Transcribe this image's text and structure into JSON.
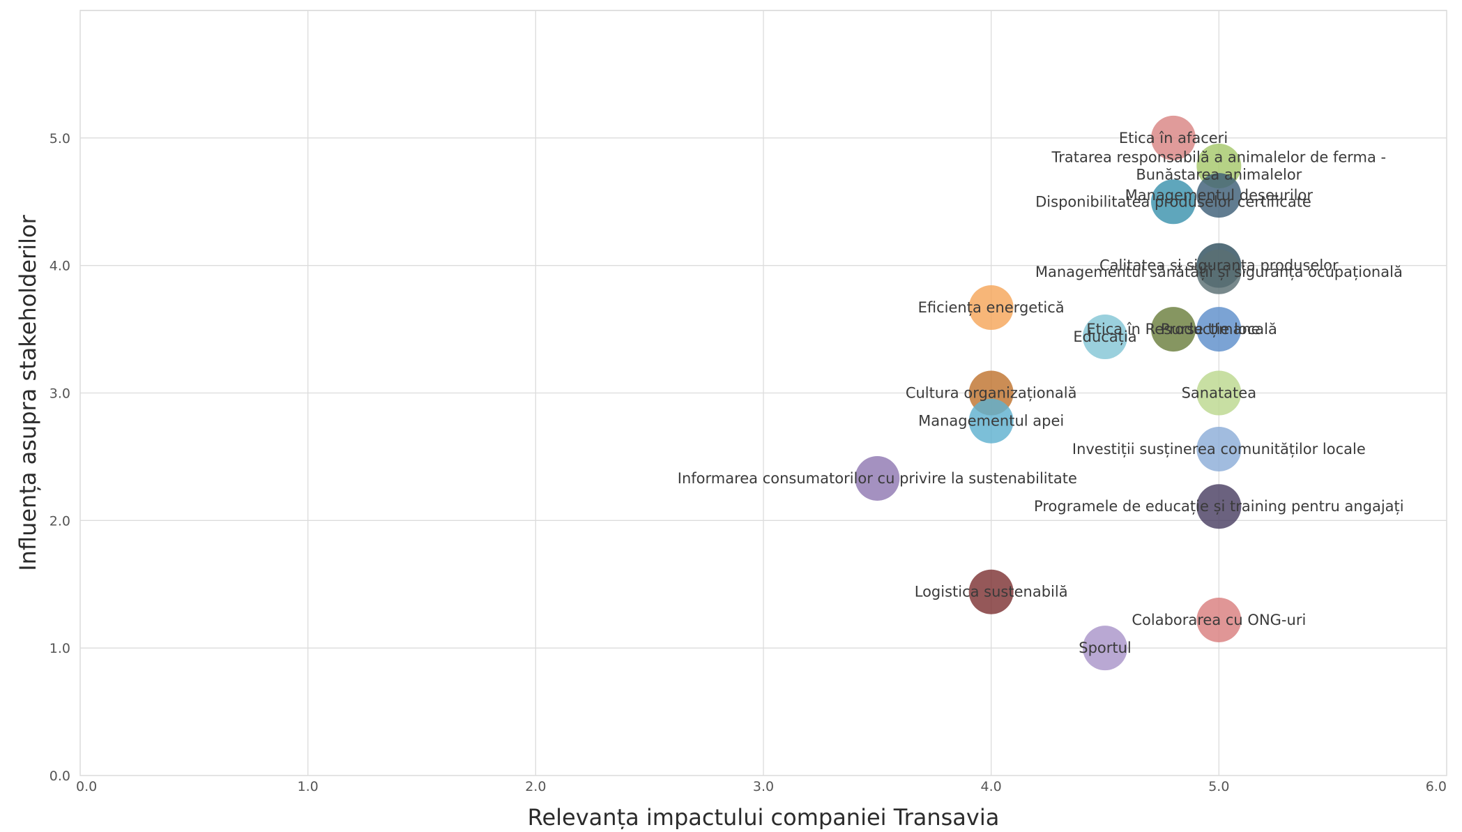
{
  "chart_data": {
    "type": "scatter",
    "title": "",
    "xlabel": "Relevanța impactului companiei Transavia",
    "ylabel": "Influența asupra stakeholderilor",
    "xlim": [
      0,
      6
    ],
    "ylim": [
      0,
      6
    ],
    "x_ticks": [
      "0.0",
      "1.0",
      "2.0",
      "3.0",
      "4.0",
      "5.0",
      "6.0"
    ],
    "y_ticks": [
      "0.0",
      "1.0",
      "2.0",
      "3.0",
      "4.0",
      "5.0"
    ],
    "grid": true,
    "points": [
      {
        "label": "Etica în afaceri",
        "x": 4.8,
        "y": 5.0,
        "color": "#d98584"
      },
      {
        "label": "Tratarea responsabilă a animalelor de ferma - Bunăstarea animalelor",
        "label_lines": [
          "Tratarea responsabilă a animalelor de ferma -",
          "Bunăstarea animalelor"
        ],
        "x": 5.0,
        "y": 4.78,
        "color": "#a6c86b"
      },
      {
        "label": "Disponibilitatea produselor certificate",
        "x": 4.8,
        "y": 4.5,
        "color": "#3c93ad"
      },
      {
        "label": "Managementul deșeurilor",
        "x": 5.0,
        "y": 4.55,
        "color": "#3e5f78"
      },
      {
        "label": "Calitatea și siguranța produselor",
        "x": 5.0,
        "y": 4.0,
        "color": "#2f4f5e"
      },
      {
        "label": "Managementul sănătății și siguranța ocupațională",
        "x": 5.0,
        "y": 3.95,
        "color": "#5a6f73"
      },
      {
        "label": "Eficiența energetică",
        "x": 4.0,
        "y": 3.67,
        "color": "#f5a65a"
      },
      {
        "label": "Educația",
        "x": 4.5,
        "y": 3.44,
        "color": "#84c6d6"
      },
      {
        "label": "Etica în Resurse Umane",
        "x": 4.8,
        "y": 3.5,
        "color": "#6b7f3e"
      },
      {
        "label": "Producție locală",
        "x": 5.0,
        "y": 3.5,
        "color": "#5e8fcb"
      },
      {
        "label": "Cultura organizațională",
        "x": 4.0,
        "y": 3.0,
        "color": "#c0742f"
      },
      {
        "label": "Sanatatea",
        "x": 5.0,
        "y": 3.0,
        "color": "#bcd88f"
      },
      {
        "label": "Managementul apei",
        "x": 4.0,
        "y": 2.78,
        "color": "#5fb1d0"
      },
      {
        "label": "Investiții susținerea comunităților locale",
        "x": 5.0,
        "y": 2.56,
        "color": "#8cadd8"
      },
      {
        "label": "Informarea consumatorilor cu privire la sustenabilitate",
        "x": 3.5,
        "y": 2.33,
        "color": "#9079b2"
      },
      {
        "label": "Programele de educație și training pentru angajați",
        "x": 5.0,
        "y": 2.11,
        "color": "#4a3f63"
      },
      {
        "label": "Logistica sustenabilă",
        "x": 4.0,
        "y": 1.44,
        "color": "#7e3335"
      },
      {
        "label": "Colaborarea cu ONG-uri",
        "x": 5.0,
        "y": 1.22,
        "color": "#d97f7f"
      },
      {
        "label": "Sportul",
        "x": 4.5,
        "y": 1.0,
        "color": "#a995c9"
      }
    ]
  }
}
